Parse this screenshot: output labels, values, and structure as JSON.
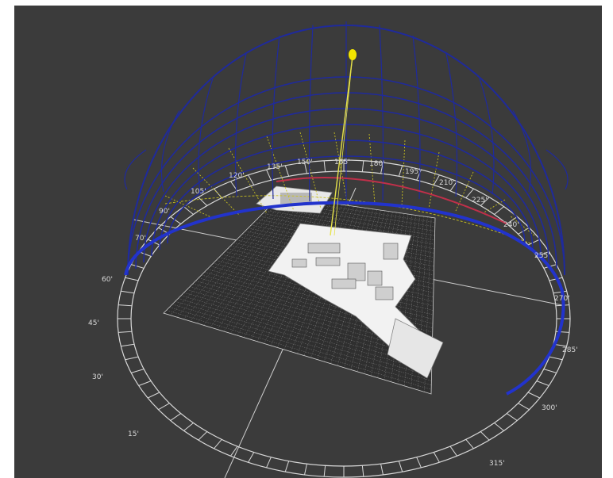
{
  "scene": {
    "title": "",
    "azimuth_labels_far": [
      "90'",
      "105'",
      "120'",
      "135'",
      "150'",
      "165'",
      "180'",
      "195'",
      "210'",
      "225'",
      "240'",
      "255'",
      "270'"
    ],
    "azimuth_labels_near": [
      "60'",
      "45'",
      "30'",
      "15'",
      "285'",
      "300'",
      "315'"
    ],
    "extra_label_70": "70'"
  },
  "colors": {
    "background": "#3b3b3b",
    "sun_path": "#1f2a9c",
    "sun": "#f2e600",
    "sun_ray": "#e6e24a",
    "projection": "#c8c020",
    "compass_ring": "#d8d8d8",
    "grid": "#d0d0d0",
    "highlight_arc": "#c0304a"
  }
}
